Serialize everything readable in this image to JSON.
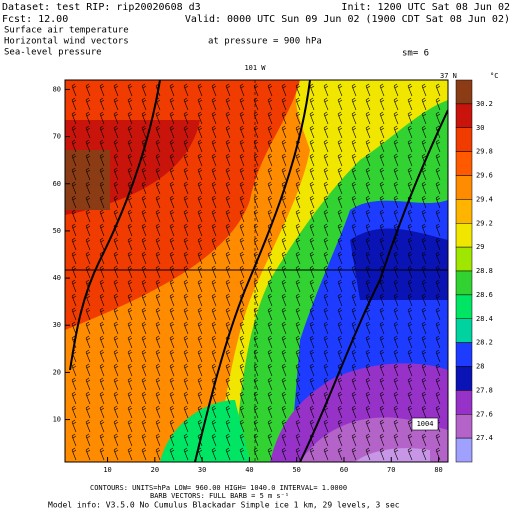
{
  "header": {
    "dataset": "Dataset: test  RIP: rip20020608 d3",
    "init": "Init: 1200 UTC Sat 08 Jun 02",
    "fcst": "Fcst:    12.00",
    "valid": "Valid: 0000 UTC Sun 09 Jun 02 (1900 CDT Sat 08 Jun 02)",
    "field1": "Surface air temperature",
    "field2": "Horizontal wind vectors",
    "pressure": "at pressure =   900 hPa",
    "field3": "Sea-level pressure",
    "sm": "sm= 6"
  },
  "map": {
    "lon_label": "101 W",
    "lat_label": "37 N",
    "contour_label": "1004",
    "xlim": [
      1,
      82
    ],
    "ylim": [
      1,
      82
    ],
    "xticks": [
      10,
      20,
      30,
      40,
      50,
      60,
      70,
      80
    ],
    "yticks": [
      10,
      20,
      30,
      40,
      50,
      60,
      70,
      80
    ]
  },
  "colorbar": {
    "unit": "°C",
    "levels": [
      30.2,
      30,
      29.8,
      29.6,
      29.4,
      29.2,
      29,
      28.8,
      28.6,
      28.4,
      28.2,
      28,
      27.8,
      27.6,
      27.4
    ],
    "colors": [
      "#8c3c14",
      "#c8140a",
      "#f03c00",
      "#ff5a00",
      "#ff8c00",
      "#ffb400",
      "#f0e600",
      "#a0e600",
      "#32d232",
      "#00e664",
      "#00d2a0",
      "#1e3cff",
      "#0a14b4",
      "#9632c8",
      "#b464c8",
      "#a0a0ff"
    ]
  },
  "footer": {
    "contours": "CONTOURS:  UNITS=hPa   LOW=  960.00   HIGH=  1040.0   INTERVAL=    1.0000",
    "barbs": "BARB VECTORS:  FULL BARB = 5 m s⁻¹",
    "model": "Model info: V3.5.0 No Cumulus Blackadar  Simple ice     1 km,   29 levels,     3 sec"
  }
}
